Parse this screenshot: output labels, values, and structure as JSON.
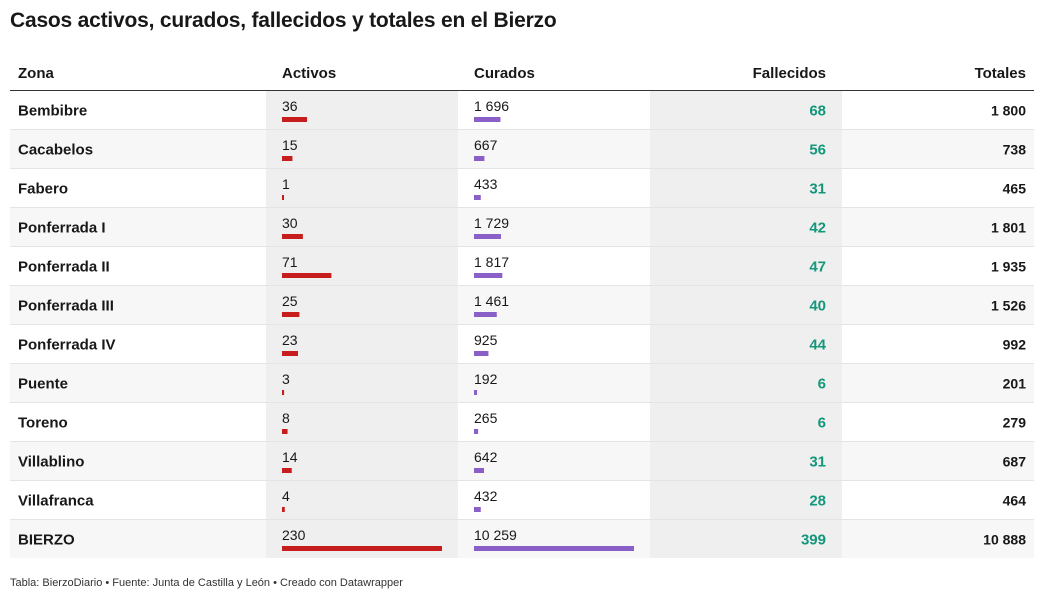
{
  "title": "Casos activos, curados, fallecidos y totales en el Bierzo",
  "footer": "Tabla: BierzoDiario • Fuente: Junta de Castilla y León • Creado con Datawrapper",
  "colors": {
    "activos_bar": "#c71e1d",
    "curados_bar": "#8a5fc7",
    "fallecidos_text": "#13977a",
    "header_rule": "#333333",
    "row_rule": "#e4e4e4",
    "shaded_column": "#efefef",
    "stripe": "#f7f7f7"
  },
  "chart_data": {
    "type": "table",
    "columns": [
      "Zona",
      "Activos",
      "Curados",
      "Fallecidos",
      "Totales"
    ],
    "rows": [
      {
        "zona": "Bembibre",
        "activos": 36,
        "activos_label": "36",
        "curados": 1696,
        "curados_label": "1 696",
        "fallecidos": "68",
        "totales": "1 800"
      },
      {
        "zona": "Cacabelos",
        "activos": 15,
        "activos_label": "15",
        "curados": 667,
        "curados_label": "667",
        "fallecidos": "56",
        "totales": "738"
      },
      {
        "zona": "Fabero",
        "activos": 1,
        "activos_label": "1",
        "curados": 433,
        "curados_label": "433",
        "fallecidos": "31",
        "totales": "465"
      },
      {
        "zona": "Ponferrada I",
        "activos": 30,
        "activos_label": "30",
        "curados": 1729,
        "curados_label": "1 729",
        "fallecidos": "42",
        "totales": "1 801"
      },
      {
        "zona": "Ponferrada II",
        "activos": 71,
        "activos_label": "71",
        "curados": 1817,
        "curados_label": "1 817",
        "fallecidos": "47",
        "totales": "1 935"
      },
      {
        "zona": "Ponferrada III",
        "activos": 25,
        "activos_label": "25",
        "curados": 1461,
        "curados_label": "1 461",
        "fallecidos": "40",
        "totales": "1 526"
      },
      {
        "zona": "Ponferrada IV",
        "activos": 23,
        "activos_label": "23",
        "curados": 925,
        "curados_label": "925",
        "fallecidos": "44",
        "totales": "992"
      },
      {
        "zona": "Puente",
        "activos": 3,
        "activos_label": "3",
        "curados": 192,
        "curados_label": "192",
        "fallecidos": "6",
        "totales": "201"
      },
      {
        "zona": "Toreno",
        "activos": 8,
        "activos_label": "8",
        "curados": 265,
        "curados_label": "265",
        "fallecidos": "6",
        "totales": "279"
      },
      {
        "zona": "Villablino",
        "activos": 14,
        "activos_label": "14",
        "curados": 642,
        "curados_label": "642",
        "fallecidos": "31",
        "totales": "687"
      },
      {
        "zona": "Villafranca",
        "activos": 4,
        "activos_label": "4",
        "curados": 432,
        "curados_label": "432",
        "fallecidos": "28",
        "totales": "464"
      },
      {
        "zona": "BIERZO",
        "activos": 230,
        "activos_label": "230",
        "curados": 10259,
        "curados_label": "10 259",
        "fallecidos": "399",
        "totales": "10 888"
      }
    ]
  }
}
